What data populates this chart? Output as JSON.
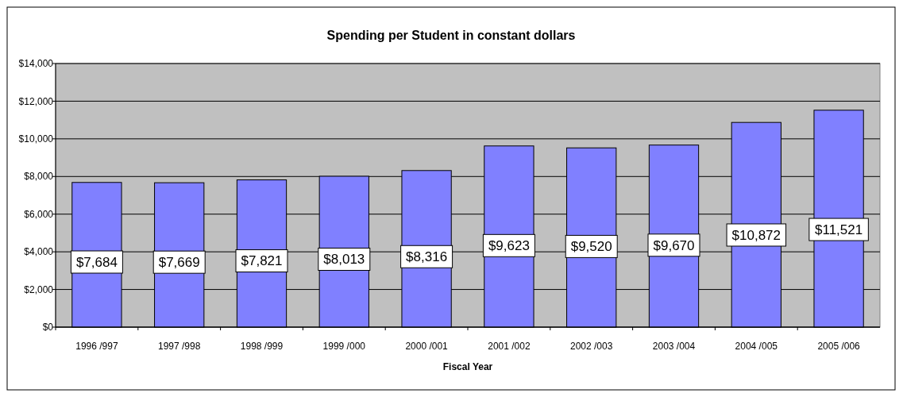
{
  "chart_data": {
    "type": "bar",
    "title": "Spending per Student in constant dollars",
    "xlabel": "Fiscal Year",
    "categories": [
      "1996 /997",
      "1997 /998",
      "1998 /999",
      "1999 /000",
      "2000 /001",
      "2001 /002",
      "2002 /003",
      "2003 /004",
      "2004 /005",
      "2005 /006"
    ],
    "values": [
      7684,
      7669,
      7821,
      8013,
      8316,
      9623,
      9520,
      9670,
      10872,
      11521
    ],
    "value_labels": [
      "$7,684",
      "$7,669",
      "$7,821",
      "$8,013",
      "$8,316",
      "$9,623",
      "$9,520",
      "$9,670",
      "$10,872",
      "$11,521"
    ],
    "color": "#8080ff",
    "ylim": [
      0,
      14000
    ],
    "yticks": [
      {
        "value": 0,
        "label": "$0"
      },
      {
        "value": 2000,
        "label": "$2,000"
      },
      {
        "value": 4000,
        "label": "$4,000"
      },
      {
        "value": 6000,
        "label": "$6,000"
      },
      {
        "value": 8000,
        "label": "$8,000"
      },
      {
        "value": 10000,
        "label": "$10,000"
      },
      {
        "value": 12000,
        "label": "$12,000"
      },
      {
        "value": 14000,
        "label": "$14,000"
      }
    ],
    "grid": "y"
  }
}
